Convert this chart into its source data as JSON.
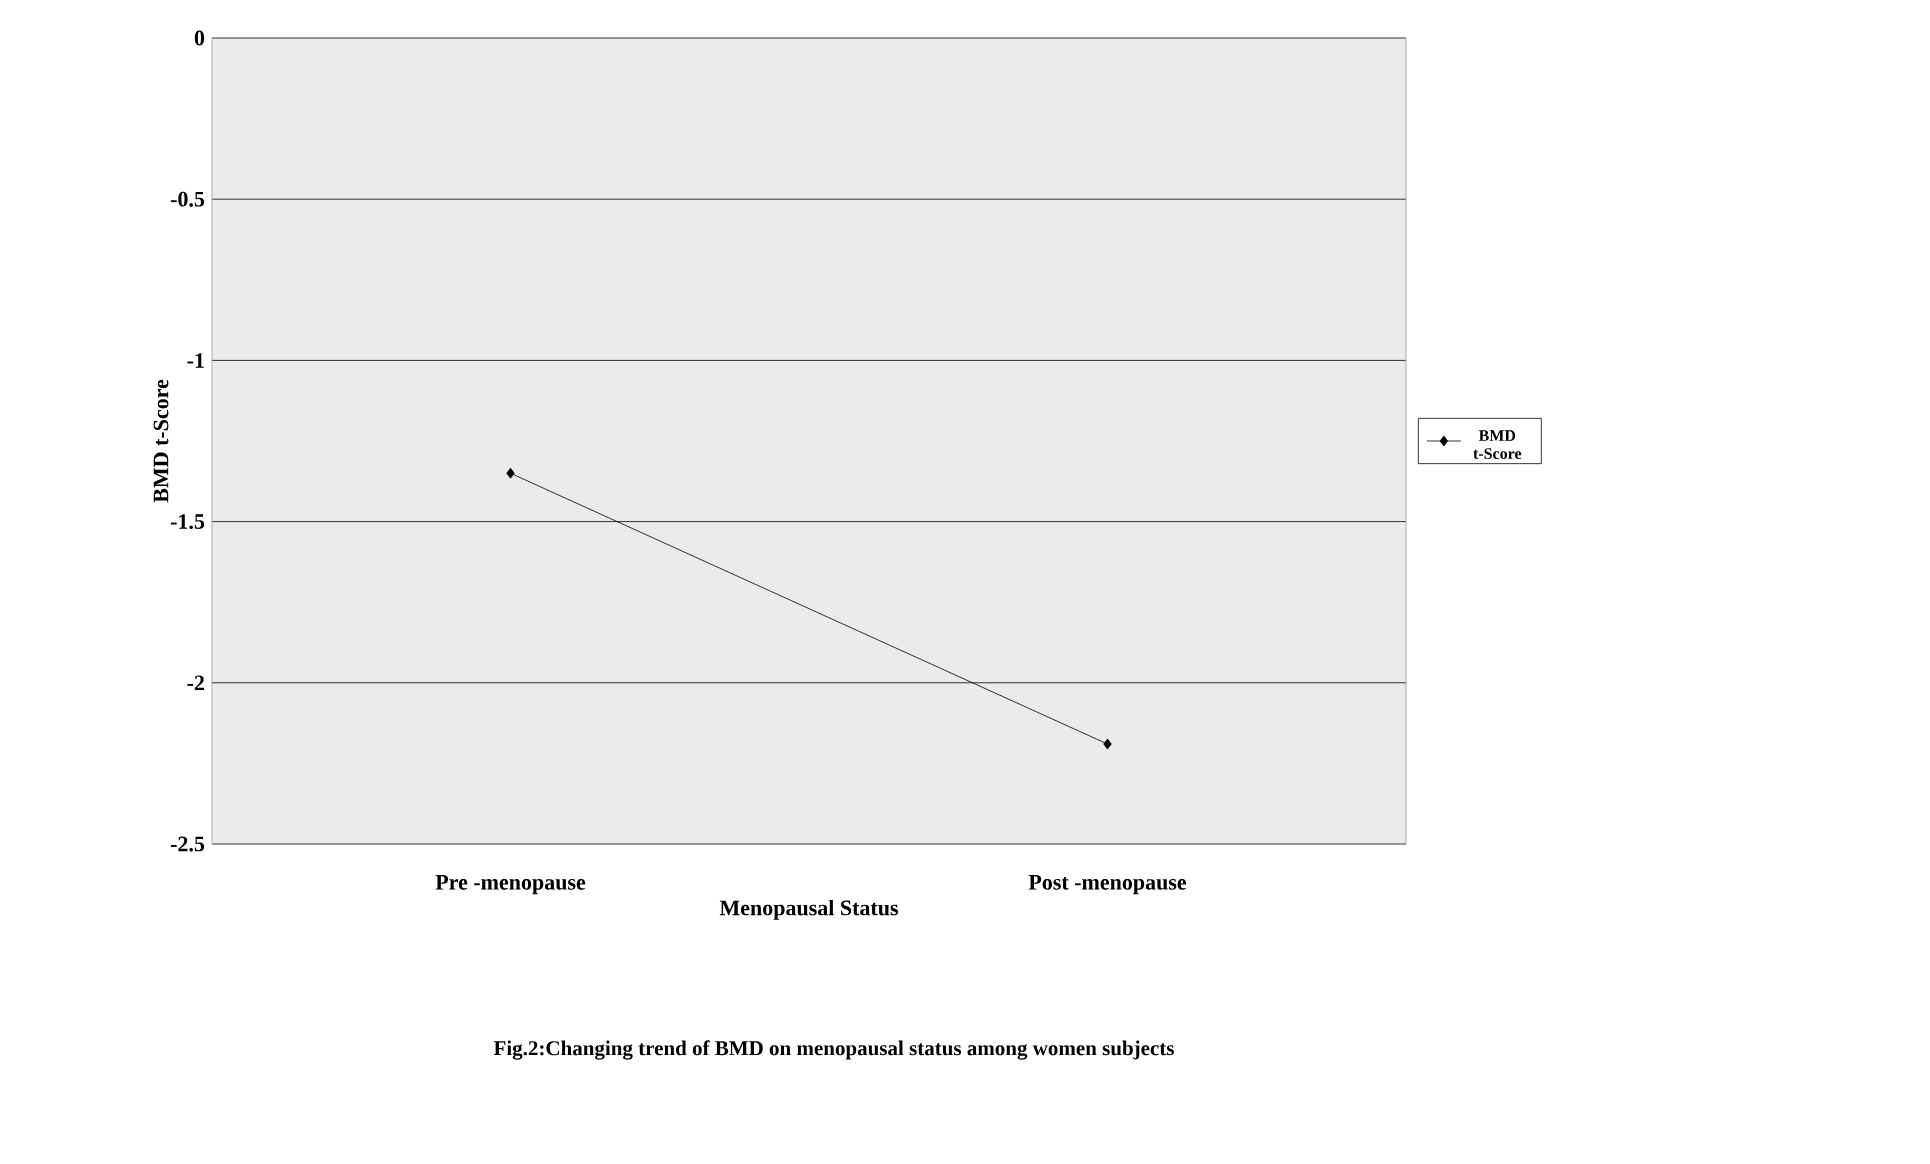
{
  "chart_data": {
    "type": "line",
    "xlabel": "Menopausal Status",
    "ylabel": "BMD t-Score",
    "categories": [
      "Pre -menopause",
      "Post -menopause"
    ],
    "series": [
      {
        "name": "BMD t-Score",
        "color": "#000000",
        "values": [
          -1.35,
          -2.19
        ]
      }
    ],
    "ylim": [
      -2.5,
      0
    ],
    "yticks": [
      -2.5,
      -2,
      -1.5,
      -1,
      -0.5,
      0
    ],
    "grid": "y",
    "legend": "right",
    "marker": "diamond",
    "line_style": "solid",
    "annotations": [
      "Fig.2:Changing trend of BMD on menopausal status among women subjects"
    ]
  }
}
